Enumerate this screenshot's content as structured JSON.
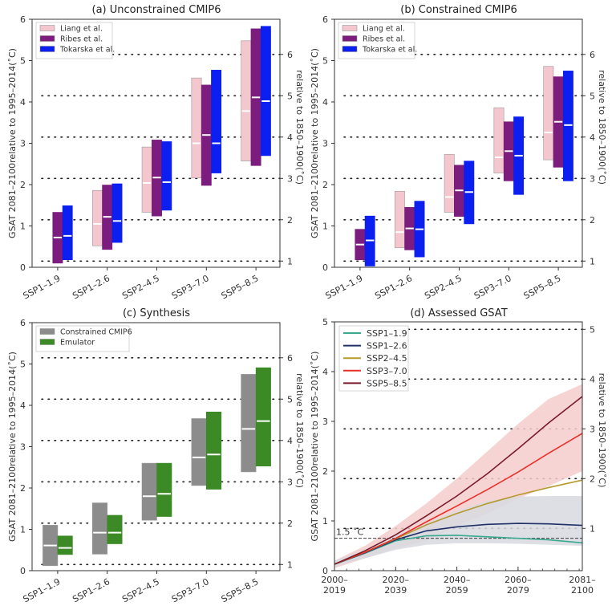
{
  "chart_data": [
    {
      "type": "bar",
      "title": "(a) Unconstrained CMIP6",
      "ylabel": "GSAT 2081–2100relative to 1995–2014(˚C)",
      "ylabel_right": "relative to 1850–1900(˚C)",
      "ylim": [
        0,
        6
      ],
      "yticks": [
        0,
        1,
        2,
        3,
        4,
        5,
        6
      ],
      "right_offset": 0.85,
      "yticks_right": [
        1,
        2,
        3,
        4,
        5,
        6
      ],
      "grid": "dotted at right-axis ticks",
      "legend": "top-left",
      "categories": [
        "SSP1–1.9",
        "SSP1–2.6",
        "SSP2–4.5",
        "SSP3–7.0",
        "SSP5–8.5"
      ],
      "series": [
        {
          "name": "Liang et al.",
          "color": "#f4c6ce",
          "low": [
            null,
            0.52,
            1.33,
            2.16,
            2.57
          ],
          "median": [
            null,
            1.05,
            2.04,
            3.0,
            3.78
          ],
          "high": [
            null,
            1.86,
            2.91,
            4.58,
            5.48
          ]
        },
        {
          "name": "Ribes et al.",
          "color": "#7b1c7e",
          "low": [
            0.1,
            0.43,
            1.24,
            1.98,
            2.46
          ],
          "median": [
            0.72,
            1.22,
            2.17,
            3.2,
            4.11
          ],
          "high": [
            1.33,
            1.99,
            3.08,
            4.41,
            5.77
          ]
        },
        {
          "name": "Tokarska et al.",
          "color": "#0a1ff0",
          "low": [
            0.18,
            0.6,
            1.38,
            2.28,
            2.7
          ],
          "median": [
            0.76,
            1.12,
            2.06,
            3.0,
            4.02
          ],
          "high": [
            1.49,
            2.02,
            3.04,
            4.77,
            5.83
          ]
        }
      ]
    },
    {
      "type": "bar",
      "title": "(b) Constrained CMIP6",
      "ylabel": "GSAT 2081–2100relative to 1995–2014(˚C)",
      "ylabel_right": "relative to 1850–1900(˚C)",
      "ylim": [
        0,
        6
      ],
      "yticks": [
        0,
        1,
        2,
        3,
        4,
        5,
        6
      ],
      "right_offset": 0.85,
      "yticks_right": [
        1,
        2,
        3,
        4,
        5,
        6
      ],
      "grid": "dotted at right-axis ticks",
      "legend": "top-left",
      "categories": [
        "SSP1–1.9",
        "SSP1–2.6",
        "SSP2–4.5",
        "SSP3–7.0",
        "SSP5–8.5"
      ],
      "series": [
        {
          "name": "Liang et al.",
          "color": "#f4c6ce",
          "low": [
            null,
            0.47,
            1.33,
            2.28,
            2.6
          ],
          "median": [
            null,
            0.85,
            1.7,
            2.66,
            3.26
          ],
          "high": [
            null,
            1.84,
            2.73,
            3.86,
            4.86
          ]
        },
        {
          "name": "Ribes et al.",
          "color": "#7b1c7e",
          "low": [
            0.18,
            0.42,
            1.23,
            2.09,
            2.42
          ],
          "median": [
            0.55,
            0.94,
            1.86,
            2.81,
            3.52
          ],
          "high": [
            0.92,
            1.45,
            2.47,
            3.52,
            4.61
          ]
        },
        {
          "name": "Tokarska et al.",
          "color": "#0a1ff0",
          "low": [
            0.03,
            0.25,
            1.05,
            1.76,
            2.09
          ],
          "median": [
            0.65,
            0.92,
            1.82,
            2.7,
            3.44
          ],
          "high": [
            1.24,
            1.6,
            2.57,
            3.64,
            4.75
          ]
        }
      ]
    },
    {
      "type": "bar",
      "title": "(c) Synthesis",
      "ylabel": "GSAT 2081–2100relative to 1995–2014(˚C)",
      "ylabel_right": "relative to 1850–1900(˚C)",
      "ylim": [
        0,
        6
      ],
      "yticks": [
        0,
        1,
        2,
        3,
        4,
        5,
        6
      ],
      "right_offset": 0.85,
      "yticks_right": [
        1,
        2,
        3,
        4,
        5,
        6
      ],
      "grid": "dotted at right-axis ticks",
      "legend": "top-left",
      "categories": [
        "SSP1–1.9",
        "SSP1–2.6",
        "SSP2–4.5",
        "SSP3–7.0",
        "SSP5–8.5"
      ],
      "series": [
        {
          "name": "Constrained CMIP6",
          "color": "#8c8c8c",
          "low": [
            0.12,
            0.4,
            1.22,
            2.06,
            2.39
          ],
          "median": [
            0.61,
            0.92,
            1.8,
            2.74,
            3.43
          ],
          "high": [
            1.1,
            1.64,
            2.6,
            3.68,
            4.75
          ]
        },
        {
          "name": "Emulator",
          "color": "#3b8a25",
          "low": [
            0.39,
            0.65,
            1.31,
            1.97,
            2.53
          ],
          "median": [
            0.55,
            0.92,
            1.86,
            2.81,
            3.62
          ],
          "high": [
            0.84,
            1.34,
            2.6,
            3.84,
            4.91
          ]
        }
      ]
    },
    {
      "type": "line",
      "title": "(d) Assessed GSAT",
      "ylabel": "GSAT 2081–2100relative to 1995–2014(˚C)",
      "ylabel_right": "relative to 1850–1900(˚C)",
      "ylim": [
        0,
        5
      ],
      "yticks": [
        0,
        1,
        2,
        3,
        4,
        5
      ],
      "right_offset": 0.15,
      "yticks_right": [
        1,
        2,
        3,
        4,
        5
      ],
      "grid": "dotted at right-axis ticks",
      "legend": "top-left",
      "xlim": [
        2000,
        2081
      ],
      "xticks": [
        {
          "value": 2000,
          "label": [
            "2000–",
            "2019"
          ]
        },
        {
          "value": 2020,
          "label": [
            "2020–",
            "2039"
          ]
        },
        {
          "value": 2040,
          "label": [
            "2040–",
            "2059"
          ]
        },
        {
          "value": 2060,
          "label": [
            "2060–",
            "2079"
          ]
        },
        {
          "value": 2081,
          "label": [
            "2081–",
            "2100"
          ]
        }
      ],
      "x": [
        2000,
        2010,
        2020,
        2030,
        2040,
        2050,
        2060,
        2070,
        2081
      ],
      "bands": [
        {
          "color": "#f6cccc",
          "low": [
            0.05,
            0.25,
            0.45,
            0.6,
            0.9,
            1.15,
            1.45,
            1.7,
            2.0
          ],
          "high": [
            0.2,
            0.5,
            0.9,
            1.35,
            1.85,
            2.4,
            2.95,
            3.45,
            3.75
          ]
        },
        {
          "color": "#d7d9e0",
          "low": [
            0.08,
            0.25,
            0.42,
            0.52,
            0.55,
            0.55,
            0.54,
            0.52,
            0.5
          ],
          "high": [
            0.2,
            0.42,
            0.72,
            0.95,
            1.2,
            1.4,
            1.49,
            1.5,
            1.5
          ]
        }
      ],
      "series": [
        {
          "name": "SSP1–1.9",
          "color": "#3aa98f",
          "values": [
            0.13,
            0.35,
            0.6,
            0.7,
            0.71,
            0.68,
            0.65,
            0.62,
            0.56
          ]
        },
        {
          "name": "SSP1–2.6",
          "color": "#1f3167",
          "values": [
            0.13,
            0.36,
            0.62,
            0.8,
            0.88,
            0.93,
            0.95,
            0.94,
            0.91
          ]
        },
        {
          "name": "SSP2–4.5",
          "color": "#b69a2e",
          "values": [
            0.13,
            0.37,
            0.64,
            0.92,
            1.15,
            1.35,
            1.52,
            1.67,
            1.82
          ]
        },
        {
          "name": "SSP3–7.0",
          "color": "#e8312a",
          "values": [
            0.13,
            0.37,
            0.65,
            0.98,
            1.3,
            1.63,
            1.98,
            2.36,
            2.76
          ]
        },
        {
          "name": "SSP5–8.5",
          "color": "#7a1b2a",
          "values": [
            0.13,
            0.4,
            0.72,
            1.1,
            1.5,
            1.95,
            2.45,
            2.97,
            3.5
          ]
        }
      ],
      "threshold": {
        "value": 0.65,
        "label": "1.5 ˚C"
      }
    }
  ]
}
